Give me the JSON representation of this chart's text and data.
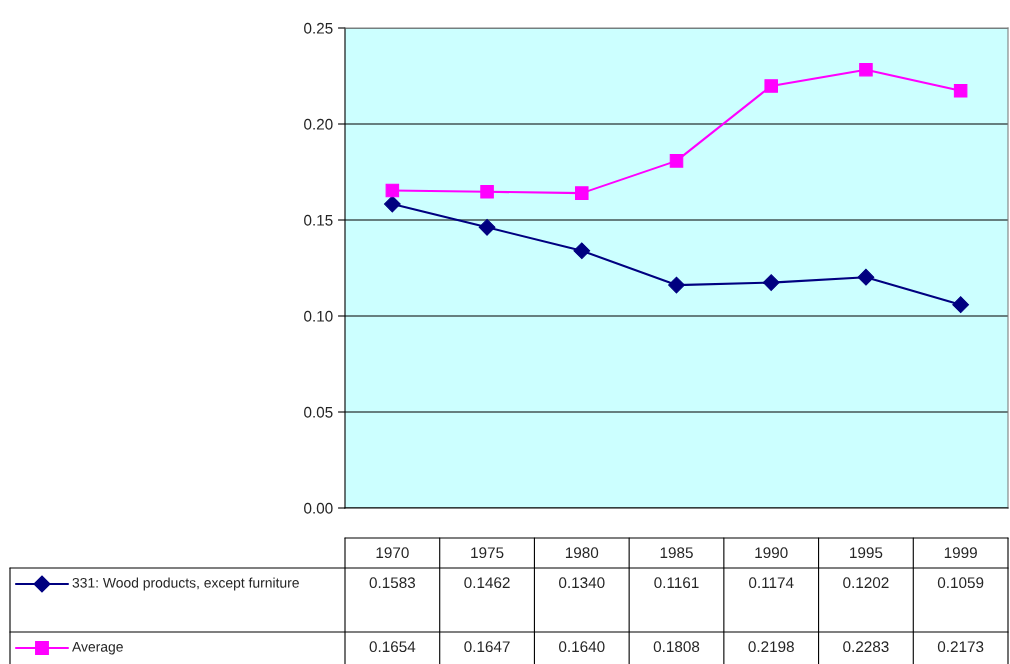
{
  "chart_data": {
    "type": "line",
    "categories": [
      "1970",
      "1975",
      "1980",
      "1985",
      "1990",
      "1995",
      "1999"
    ],
    "series": [
      {
        "name": "331: Wood products, except furniture",
        "color": "#000080",
        "marker": "diamond",
        "values": [
          0.1583,
          0.1462,
          0.134,
          0.1161,
          0.1174,
          0.1202,
          0.1059
        ],
        "value_labels": [
          "0.1583",
          "0.1462",
          "0.1340",
          "0.1161",
          "0.1174",
          "0.1202",
          "0.1059"
        ]
      },
      {
        "name": "Average",
        "color": "#ff00ff",
        "marker": "square",
        "values": [
          0.1654,
          0.1647,
          0.164,
          0.1808,
          0.2198,
          0.2283,
          0.2173
        ],
        "value_labels": [
          "0.1654",
          "0.1647",
          "0.1640",
          "0.1808",
          "0.2198",
          "0.2283",
          "0.2173"
        ]
      }
    ],
    "ylim": [
      0,
      0.25
    ],
    "yticks": [
      {
        "value": 0,
        "label": "0.00"
      },
      {
        "value": 0.05,
        "label": "0.05"
      },
      {
        "value": 0.1,
        "label": "0.10"
      },
      {
        "value": 0.15,
        "label": "0.15"
      },
      {
        "value": 0.2,
        "label": "0.20"
      },
      {
        "value": 0.25,
        "label": "0.25"
      }
    ],
    "grid": "y",
    "legend": "bottom",
    "line_style": "solid"
  }
}
